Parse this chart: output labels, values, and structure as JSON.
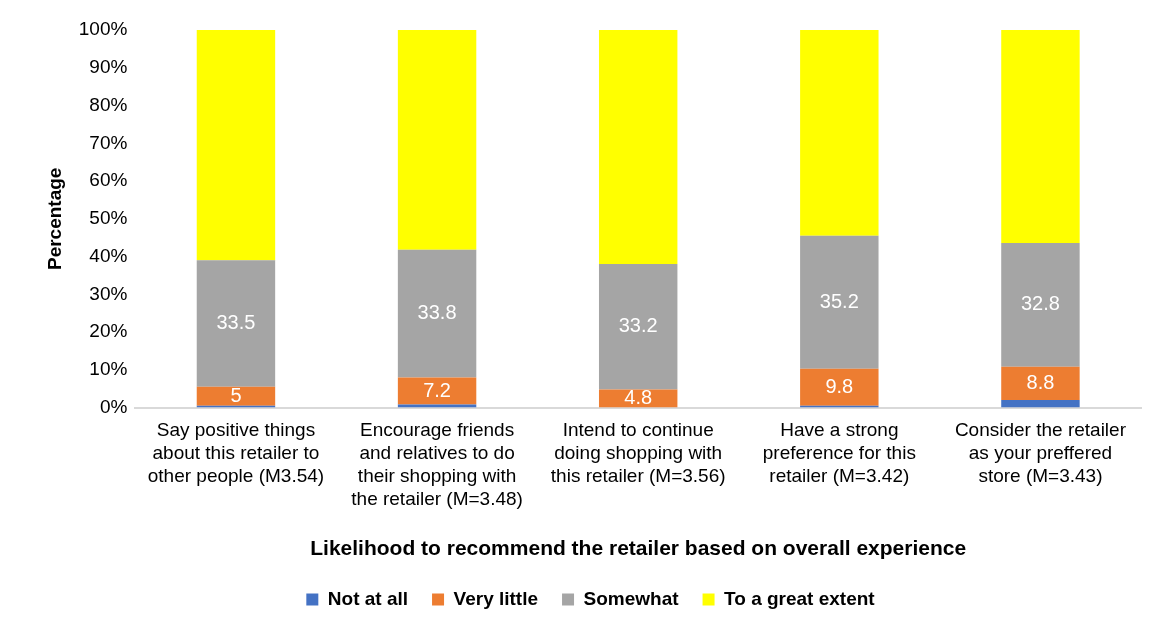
{
  "chart_data": {
    "type": "bar",
    "stacked": true,
    "xlabel": "Likelihood to recommend the retailer based on overall experience",
    "ylabel": "Percentage",
    "categories": [
      "Say positive things about this retailer to other people (M3.54)",
      "Encourage friends and relatives to do their shopping with the retailer (M=3.48)",
      "Intend to continue doing shopping with this retailer (M=3.56)",
      "Have a strong preference for this retailer (M=3.42)",
      "Consider the retailer as your preffered store (M=3.43)"
    ],
    "series": [
      {
        "name": "Not at all",
        "color": "#4472c4",
        "values": [
          0.5,
          0.8,
          0,
          0.5,
          2
        ]
      },
      {
        "name": "Very little",
        "color": "#ed7d31",
        "values": [
          5,
          7.2,
          4.8,
          9.8,
          8.8
        ],
        "value_labels": [
          "5",
          "7.2",
          "4.8",
          "9.8",
          "8.8"
        ]
      },
      {
        "name": "Somewhat",
        "color": "#a5a5a5",
        "values": [
          33.5,
          33.8,
          33.2,
          35.2,
          32.8
        ],
        "value_labels": [
          "33.5",
          "33.8",
          "33.2",
          "35.2",
          "32.8"
        ]
      },
      {
        "name": "To a great extent",
        "color": "#ffff00",
        "values": [
          61,
          58.2,
          62,
          54.5,
          56.4
        ]
      }
    ],
    "ylim": [
      0,
      100
    ],
    "yticks": [
      {
        "value": 0,
        "label": "0%"
      },
      {
        "value": 10,
        "label": "10%"
      },
      {
        "value": 20,
        "label": "20%"
      },
      {
        "value": 30,
        "label": "30%"
      },
      {
        "value": 40,
        "label": "40%"
      },
      {
        "value": 50,
        "label": "50%"
      },
      {
        "value": 60,
        "label": "60%"
      },
      {
        "value": 70,
        "label": "70%"
      },
      {
        "value": 80,
        "label": "80%"
      },
      {
        "value": 90,
        "label": "90%"
      },
      {
        "value": 100,
        "label": "100%"
      }
    ],
    "grid": false,
    "legend": "bottom"
  }
}
